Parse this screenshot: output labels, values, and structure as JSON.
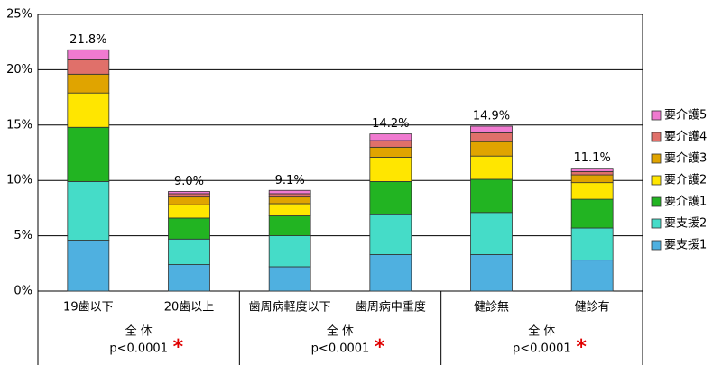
{
  "chart_data": {
    "type": "stacked_bar",
    "categories": [
      "19歯以下",
      "20歯以上",
      "歯周病軽度以下",
      "歯周病中重度",
      "健診無",
      "健診有"
    ],
    "series": [
      {
        "name": "要支援1",
        "color": "#4fb0e0",
        "values": [
          4.6,
          2.4,
          2.2,
          3.3,
          3.3,
          2.8
        ]
      },
      {
        "name": "要支援2",
        "color": "#45dcc8",
        "values": [
          5.3,
          2.3,
          2.8,
          3.6,
          3.8,
          2.9
        ]
      },
      {
        "name": "要介護1",
        "color": "#22b422",
        "values": [
          4.9,
          1.9,
          1.8,
          3.0,
          3.0,
          2.6
        ]
      },
      {
        "name": "要介護2",
        "color": "#ffe600",
        "values": [
          3.1,
          1.2,
          1.1,
          2.2,
          2.1,
          1.5
        ]
      },
      {
        "name": "要介護3",
        "color": "#e0a400",
        "values": [
          1.7,
          0.7,
          0.6,
          0.9,
          1.3,
          0.7
        ]
      },
      {
        "name": "要介護4",
        "color": "#e0706a",
        "values": [
          1.3,
          0.3,
          0.3,
          0.6,
          0.8,
          0.3
        ]
      },
      {
        "name": "要介護5",
        "color": "#f07ad0",
        "values": [
          0.9,
          0.2,
          0.3,
          0.6,
          0.6,
          0.3
        ]
      }
    ],
    "totals": [
      21.8,
      9.0,
      9.1,
      14.2,
      14.9,
      11.1
    ],
    "total_labels": [
      "21.8%",
      "9.0%",
      "9.1%",
      "14.2%",
      "14.9%",
      "11.1%"
    ],
    "ylim": [
      0,
      25
    ],
    "yticks": [
      {
        "value": 0,
        "label": "0%"
      },
      {
        "value": 5,
        "label": "5%"
      },
      {
        "value": 10,
        "label": "10%"
      },
      {
        "value": 15,
        "label": "15%"
      },
      {
        "value": 20,
        "label": "20%"
      },
      {
        "value": 25,
        "label": "25%"
      }
    ],
    "grid": true,
    "groups": [
      {
        "label": "全 体",
        "p": "p<0.0001",
        "mark": "*"
      },
      {
        "label": "全 体",
        "p": "p<0.0001",
        "mark": "*"
      },
      {
        "label": "全 体",
        "p": "p<0.0001",
        "mark": "*"
      }
    ]
  }
}
